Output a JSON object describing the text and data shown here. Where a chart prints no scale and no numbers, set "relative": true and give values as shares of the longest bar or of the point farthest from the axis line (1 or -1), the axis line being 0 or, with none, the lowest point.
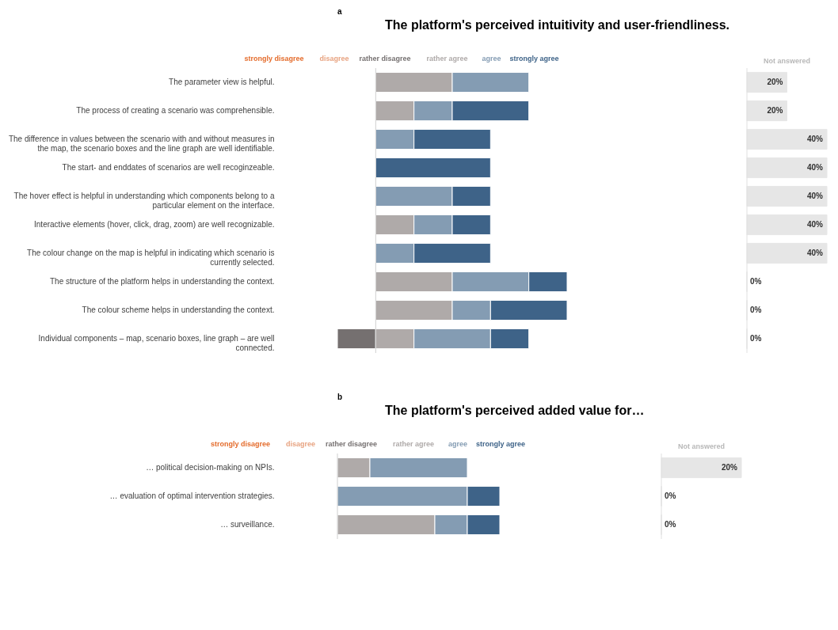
{
  "chart_data": [
    {
      "type": "bar",
      "orientation": "horizontal",
      "stacked": true,
      "relative": true,
      "legend": "top",
      "title": "The platform's perceived intuitivity and user-friendliness.",
      "annotations": [
        "a"
      ],
      "categories": [
        "The parameter view is helpful.",
        "The process of creating a scenario was comprehensible.",
        "The difference in values between the scenario with and without measures in the map, the scenario boxes and the line graph are well identifiable.",
        "The start- and enddates of scenarios are well recoginzeable.",
        "The hover effect is helpful in understanding which components belong to a particular element on the interface.",
        "Interactive elements (hover, click, drag, zoom) are well recognizable.",
        "The colour change on the map is helpful in indicating which scenario is currently selected.",
        "The structure of the platform helps in understanding the context.",
        "The colour scheme helps in understanding the context.",
        "Individual components – map, scenario boxes, line graph – are well connected."
      ],
      "series": [
        {
          "name": "strongly disagree",
          "color": "#e46c2c",
          "values": [
            null,
            null,
            null,
            null,
            null,
            null,
            null,
            null,
            null,
            null
          ]
        },
        {
          "name": "disagree",
          "color": "#e8a482",
          "values": [
            null,
            null,
            null,
            null,
            null,
            null,
            null,
            null,
            null,
            null
          ]
        },
        {
          "name": "rather disagree",
          "color": "#757070",
          "values": [
            null,
            null,
            null,
            null,
            null,
            null,
            null,
            null,
            null,
            -0.2
          ]
        },
        {
          "name": "rather agree",
          "color": "#afaaa9",
          "values": [
            0.4,
            0.2,
            null,
            null,
            null,
            0.2,
            null,
            0.4,
            0.4,
            0.2
          ]
        },
        {
          "name": "agree",
          "color": "#849cb3",
          "values": [
            0.4,
            0.2,
            0.2,
            null,
            0.4,
            0.2,
            0.2,
            0.4,
            0.2,
            0.4
          ]
        },
        {
          "name": "strongly agree",
          "color": "#3e6388",
          "values": [
            null,
            0.4,
            0.4,
            0.6,
            0.2,
            0.2,
            0.4,
            0.2,
            0.4,
            0.2
          ]
        }
      ]
    },
    {
      "type": "bar",
      "orientation": "horizontal",
      "title": "Not answered",
      "tick_labels": false,
      "xlim": [
        0,
        40
      ],
      "categories": [
        null,
        null,
        null,
        null,
        null,
        null,
        null,
        null,
        null,
        null
      ],
      "series": [
        {
          "color": "#e6e6e6",
          "values": [
            20,
            20,
            40,
            40,
            40,
            40,
            40,
            0,
            0,
            0
          ],
          "value_labels": [
            "20%",
            "20%",
            "40%",
            "40%",
            "40%",
            "40%",
            "40%",
            "0%",
            "0%",
            "0%"
          ]
        }
      ]
    },
    {
      "type": "bar",
      "orientation": "horizontal",
      "stacked": true,
      "relative": true,
      "legend": "top",
      "title": "The platform's perceived added value for…",
      "annotations": [
        "b"
      ],
      "categories": [
        "… political decision-making on NPIs.",
        "… evaluation of optimal intervention strategies.",
        "… surveillance."
      ],
      "series": [
        {
          "name": "strongly disagree",
          "color": "#e46c2c",
          "values": [
            null,
            null,
            null
          ]
        },
        {
          "name": "disagree",
          "color": "#e8a482",
          "values": [
            null,
            null,
            null
          ]
        },
        {
          "name": "rather disagree",
          "color": "#757070",
          "values": [
            null,
            null,
            null
          ]
        },
        {
          "name": "rather agree",
          "color": "#afaaa9",
          "values": [
            0.2,
            null,
            0.6
          ]
        },
        {
          "name": "agree",
          "color": "#849cb3",
          "values": [
            0.6,
            0.8,
            0.2
          ]
        },
        {
          "name": "strongly agree",
          "color": "#3e6388",
          "values": [
            null,
            0.2,
            0.2
          ]
        }
      ]
    },
    {
      "type": "bar",
      "orientation": "horizontal",
      "title": "Not answered",
      "tick_labels": false,
      "categories": [
        null,
        null,
        null
      ],
      "series": [
        {
          "color": "#e6e6e6",
          "values": [
            20,
            0,
            0
          ],
          "value_labels": [
            "20%",
            "0%",
            "0%"
          ]
        }
      ]
    }
  ]
}
